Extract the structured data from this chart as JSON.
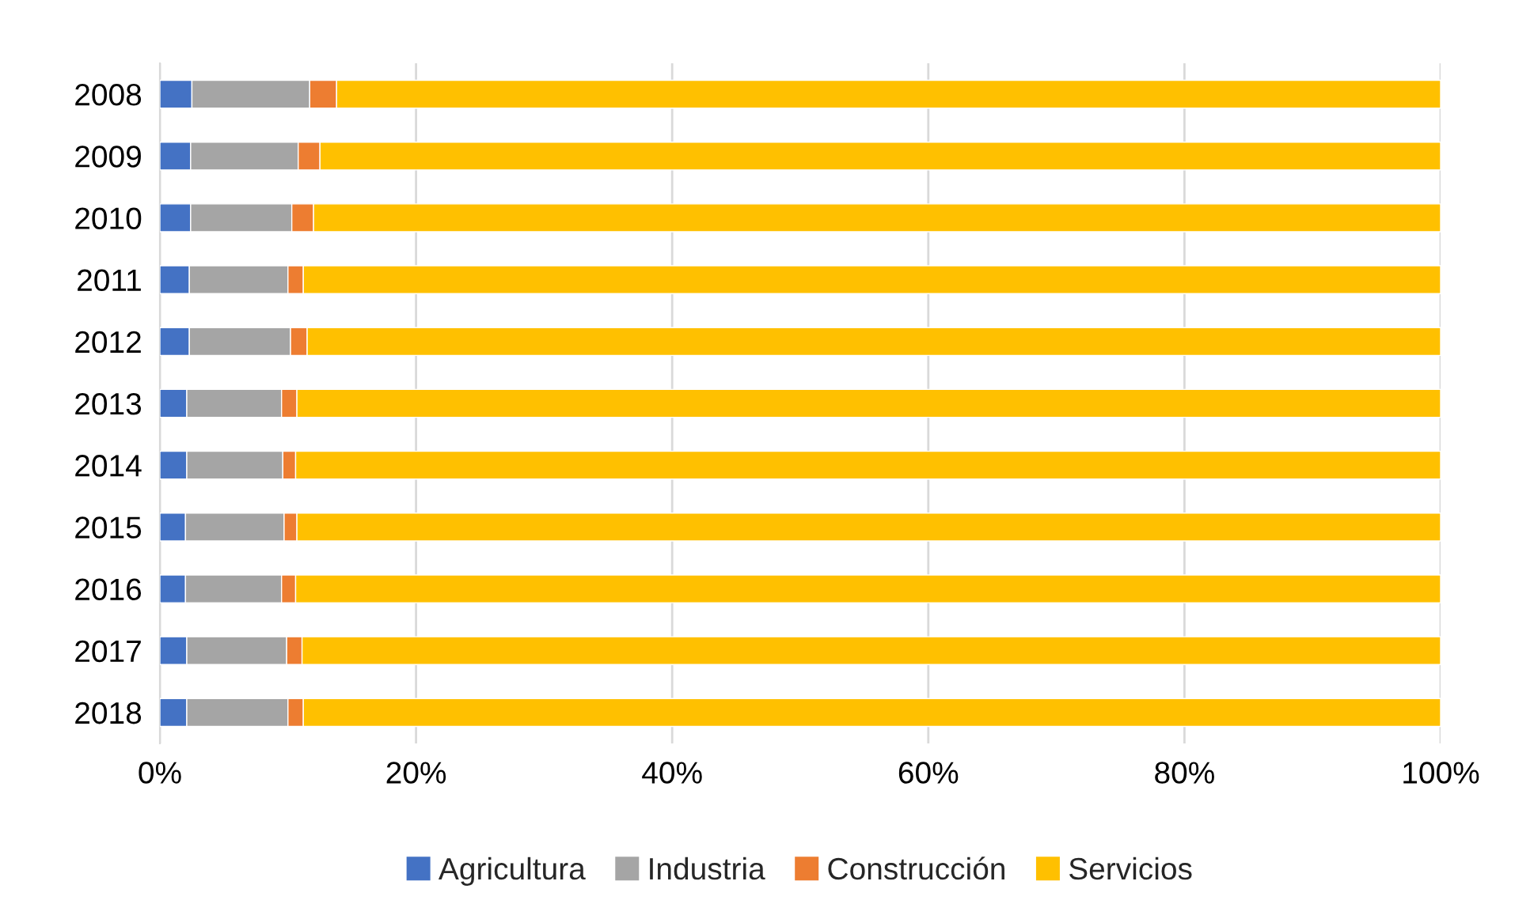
{
  "chart_data": {
    "type": "bar",
    "orientation": "horizontal",
    "stacked": true,
    "categories": [
      "2008",
      "2009",
      "2010",
      "2011",
      "2012",
      "2013",
      "2014",
      "2015",
      "2016",
      "2017",
      "2018"
    ],
    "series": [
      {
        "name": "Agricultura",
        "color": "#4472c4",
        "values": [
          2.5,
          2.4,
          2.4,
          2.3,
          2.3,
          2.1,
          2.1,
          2.0,
          2.0,
          2.1,
          2.1
        ]
      },
      {
        "name": "Industria",
        "color": "#a5a5a5",
        "values": [
          9.2,
          8.4,
          7.9,
          7.7,
          7.9,
          7.4,
          7.5,
          7.7,
          7.5,
          7.8,
          7.9
        ]
      },
      {
        "name": "Construcción",
        "color": "#ed7d31",
        "values": [
          2.1,
          1.7,
          1.7,
          1.2,
          1.3,
          1.2,
          1.0,
          1.0,
          1.1,
          1.2,
          1.2
        ]
      },
      {
        "name": "Servicios",
        "color": "#ffc000",
        "values": [
          86.2,
          87.5,
          88.0,
          88.8,
          88.5,
          89.3,
          89.4,
          89.3,
          89.4,
          88.9,
          88.8
        ]
      }
    ],
    "xlim": [
      0,
      100
    ],
    "xticks": [
      {
        "value": 0,
        "label": "0%"
      },
      {
        "value": 20,
        "label": "20%"
      },
      {
        "value": 40,
        "label": "40%"
      },
      {
        "value": 60,
        "label": "60%"
      },
      {
        "value": 80,
        "label": "80%"
      },
      {
        "value": 100,
        "label": "100%"
      }
    ],
    "grid": "x",
    "legend": "bottom"
  }
}
